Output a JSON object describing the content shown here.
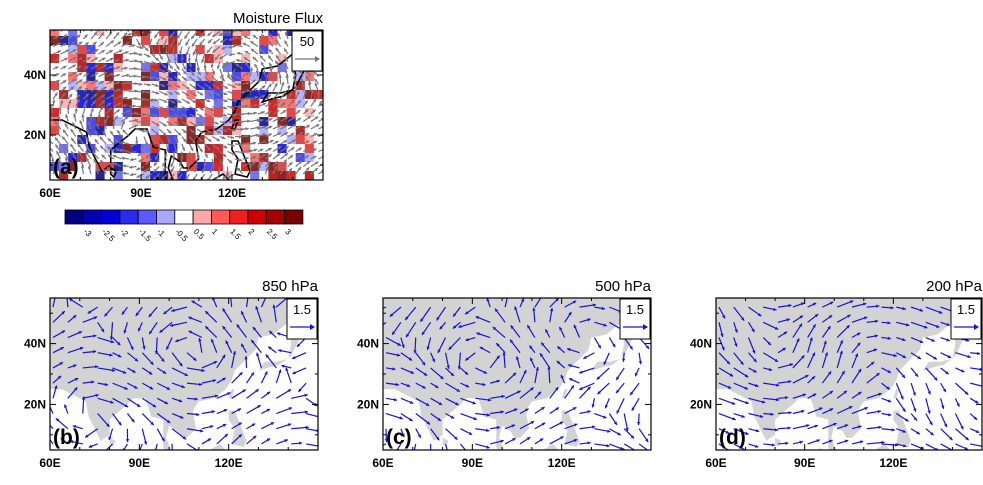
{
  "panels": [
    {
      "title": "Moisture Flux",
      "reference_vector": "50",
      "label": "(a)",
      "lat_labels": [
        "40N",
        "20N"
      ],
      "lon_labels": [
        "60E",
        "90E",
        "120E"
      ]
    },
    {
      "title": "850 hPa",
      "reference_vector": "1.5",
      "label": "(b)",
      "lat_labels": [
        "40N",
        "20N"
      ],
      "lon_labels": [
        "60E",
        "90E",
        "120E"
      ]
    },
    {
      "title": "500 hPa",
      "reference_vector": "1.5",
      "label": "(c)",
      "lat_labels": [
        "40N",
        "20N"
      ],
      "lon_labels": [
        "60E",
        "90E",
        "120E"
      ]
    },
    {
      "title": "200 hPa",
      "reference_vector": "1.5",
      "label": "(d)",
      "lat_labels": [
        "40N",
        "20N"
      ],
      "lon_labels": [
        "60E",
        "90E",
        "120E"
      ]
    }
  ],
  "colorbar": {
    "colors": [
      "#000080",
      "#0000b0",
      "#0000d8",
      "#2a2af0",
      "#5a5aff",
      "#a8a8ff",
      "#ffffff",
      "#ffa8a8",
      "#ff5a5a",
      "#f02020",
      "#d00000",
      "#a80000",
      "#780000"
    ],
    "labels": [
      "-3",
      "-2.5",
      "-2",
      "-1.5",
      "-1",
      "-0.5",
      "0.5",
      "1",
      "1.5",
      "2",
      "2.5",
      "3"
    ]
  }
}
